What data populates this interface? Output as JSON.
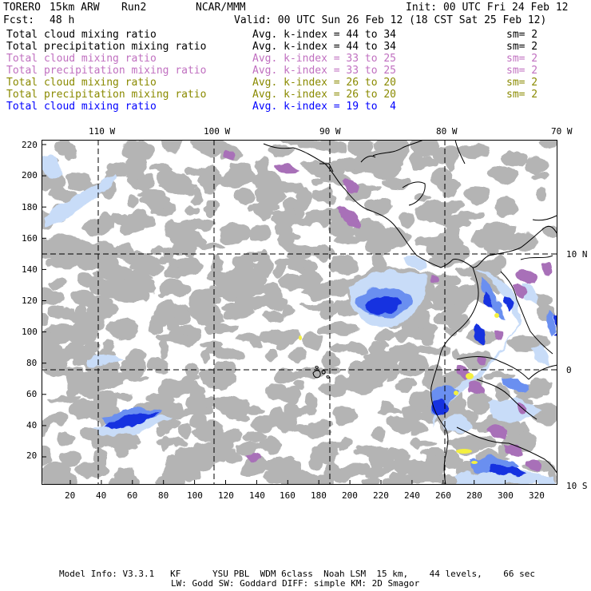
{
  "header": {
    "model": "TORERO",
    "resolution": "15km ARW",
    "run": "Run2",
    "center": "NCAR/MMM",
    "init": "Init: 00 UTC Fri 24 Feb 12",
    "fcst_label": "Fcst:",
    "fcst_value": "48 h",
    "valid": "Valid: 00 UTC Sun 26 Feb 12 (18 CST Sat 25 Feb 12)"
  },
  "legend": [
    {
      "field": "Total cloud mixing ratio",
      "k": "Avg. k-index = 44 to 34",
      "sm": "sm= 2",
      "color": "#000000"
    },
    {
      "field": "Total precipitation mixing ratio",
      "k": "Avg. k-index = 44 to 34",
      "sm": "sm= 2",
      "color": "#000000"
    },
    {
      "field": "Total cloud mixing ratio",
      "k": "Avg. k-index = 33 to 25",
      "sm": "sm= 2",
      "color": "#c070c0"
    },
    {
      "field": "Total precipitation mixing ratio",
      "k": "Avg. k-index = 33 to 25",
      "sm": "sm= 2",
      "color": "#c070c0"
    },
    {
      "field": "Total cloud mixing ratio",
      "k": "Avg. k-index = 26 to 20",
      "sm": "sm= 2",
      "color": "#8a8a00"
    },
    {
      "field": "Total precipitation mixing ratio",
      "k": "Avg. k-index = 26 to 20",
      "sm": "sm= 2",
      "color": "#8a8a00"
    },
    {
      "field": "Total cloud mixing ratio",
      "k": "Avg. k-index = 19 to  4",
      "sm": "",
      "color": "#0000ff"
    }
  ],
  "axes": {
    "lon_labels": [
      "110 W",
      "100 W",
      "90 W",
      "80 W",
      "70 W"
    ],
    "lat_labels": [
      "10 N",
      "0",
      "10 S"
    ],
    "y_ticks": [
      "220",
      "200",
      "180",
      "160",
      "140",
      "120",
      "100",
      "80",
      "60",
      "40",
      "20"
    ],
    "x_ticks": [
      "20",
      "40",
      "60",
      "80",
      "100",
      "120",
      "140",
      "160",
      "180",
      "200",
      "220",
      "240",
      "260",
      "280",
      "300",
      "320"
    ]
  },
  "footer": {
    "line1": "Model Info: V3.3.1   KF      YSU PBL  WDM 6class  Noah LSM  15 km,    44 levels,    66 sec",
    "line2": "LW: Godd SW: Goddard DIFF: simple KM: 2D Smagor"
  },
  "colors": {
    "gray_cloud": "#b4b4b4",
    "purple_cloud": "#a870b8",
    "yellow_cloud": "#f4f040",
    "light_blue": "#c8dcf8",
    "mid_blue": "#6a8ff0",
    "dark_blue": "#1830e0",
    "coast": "#000000"
  }
}
